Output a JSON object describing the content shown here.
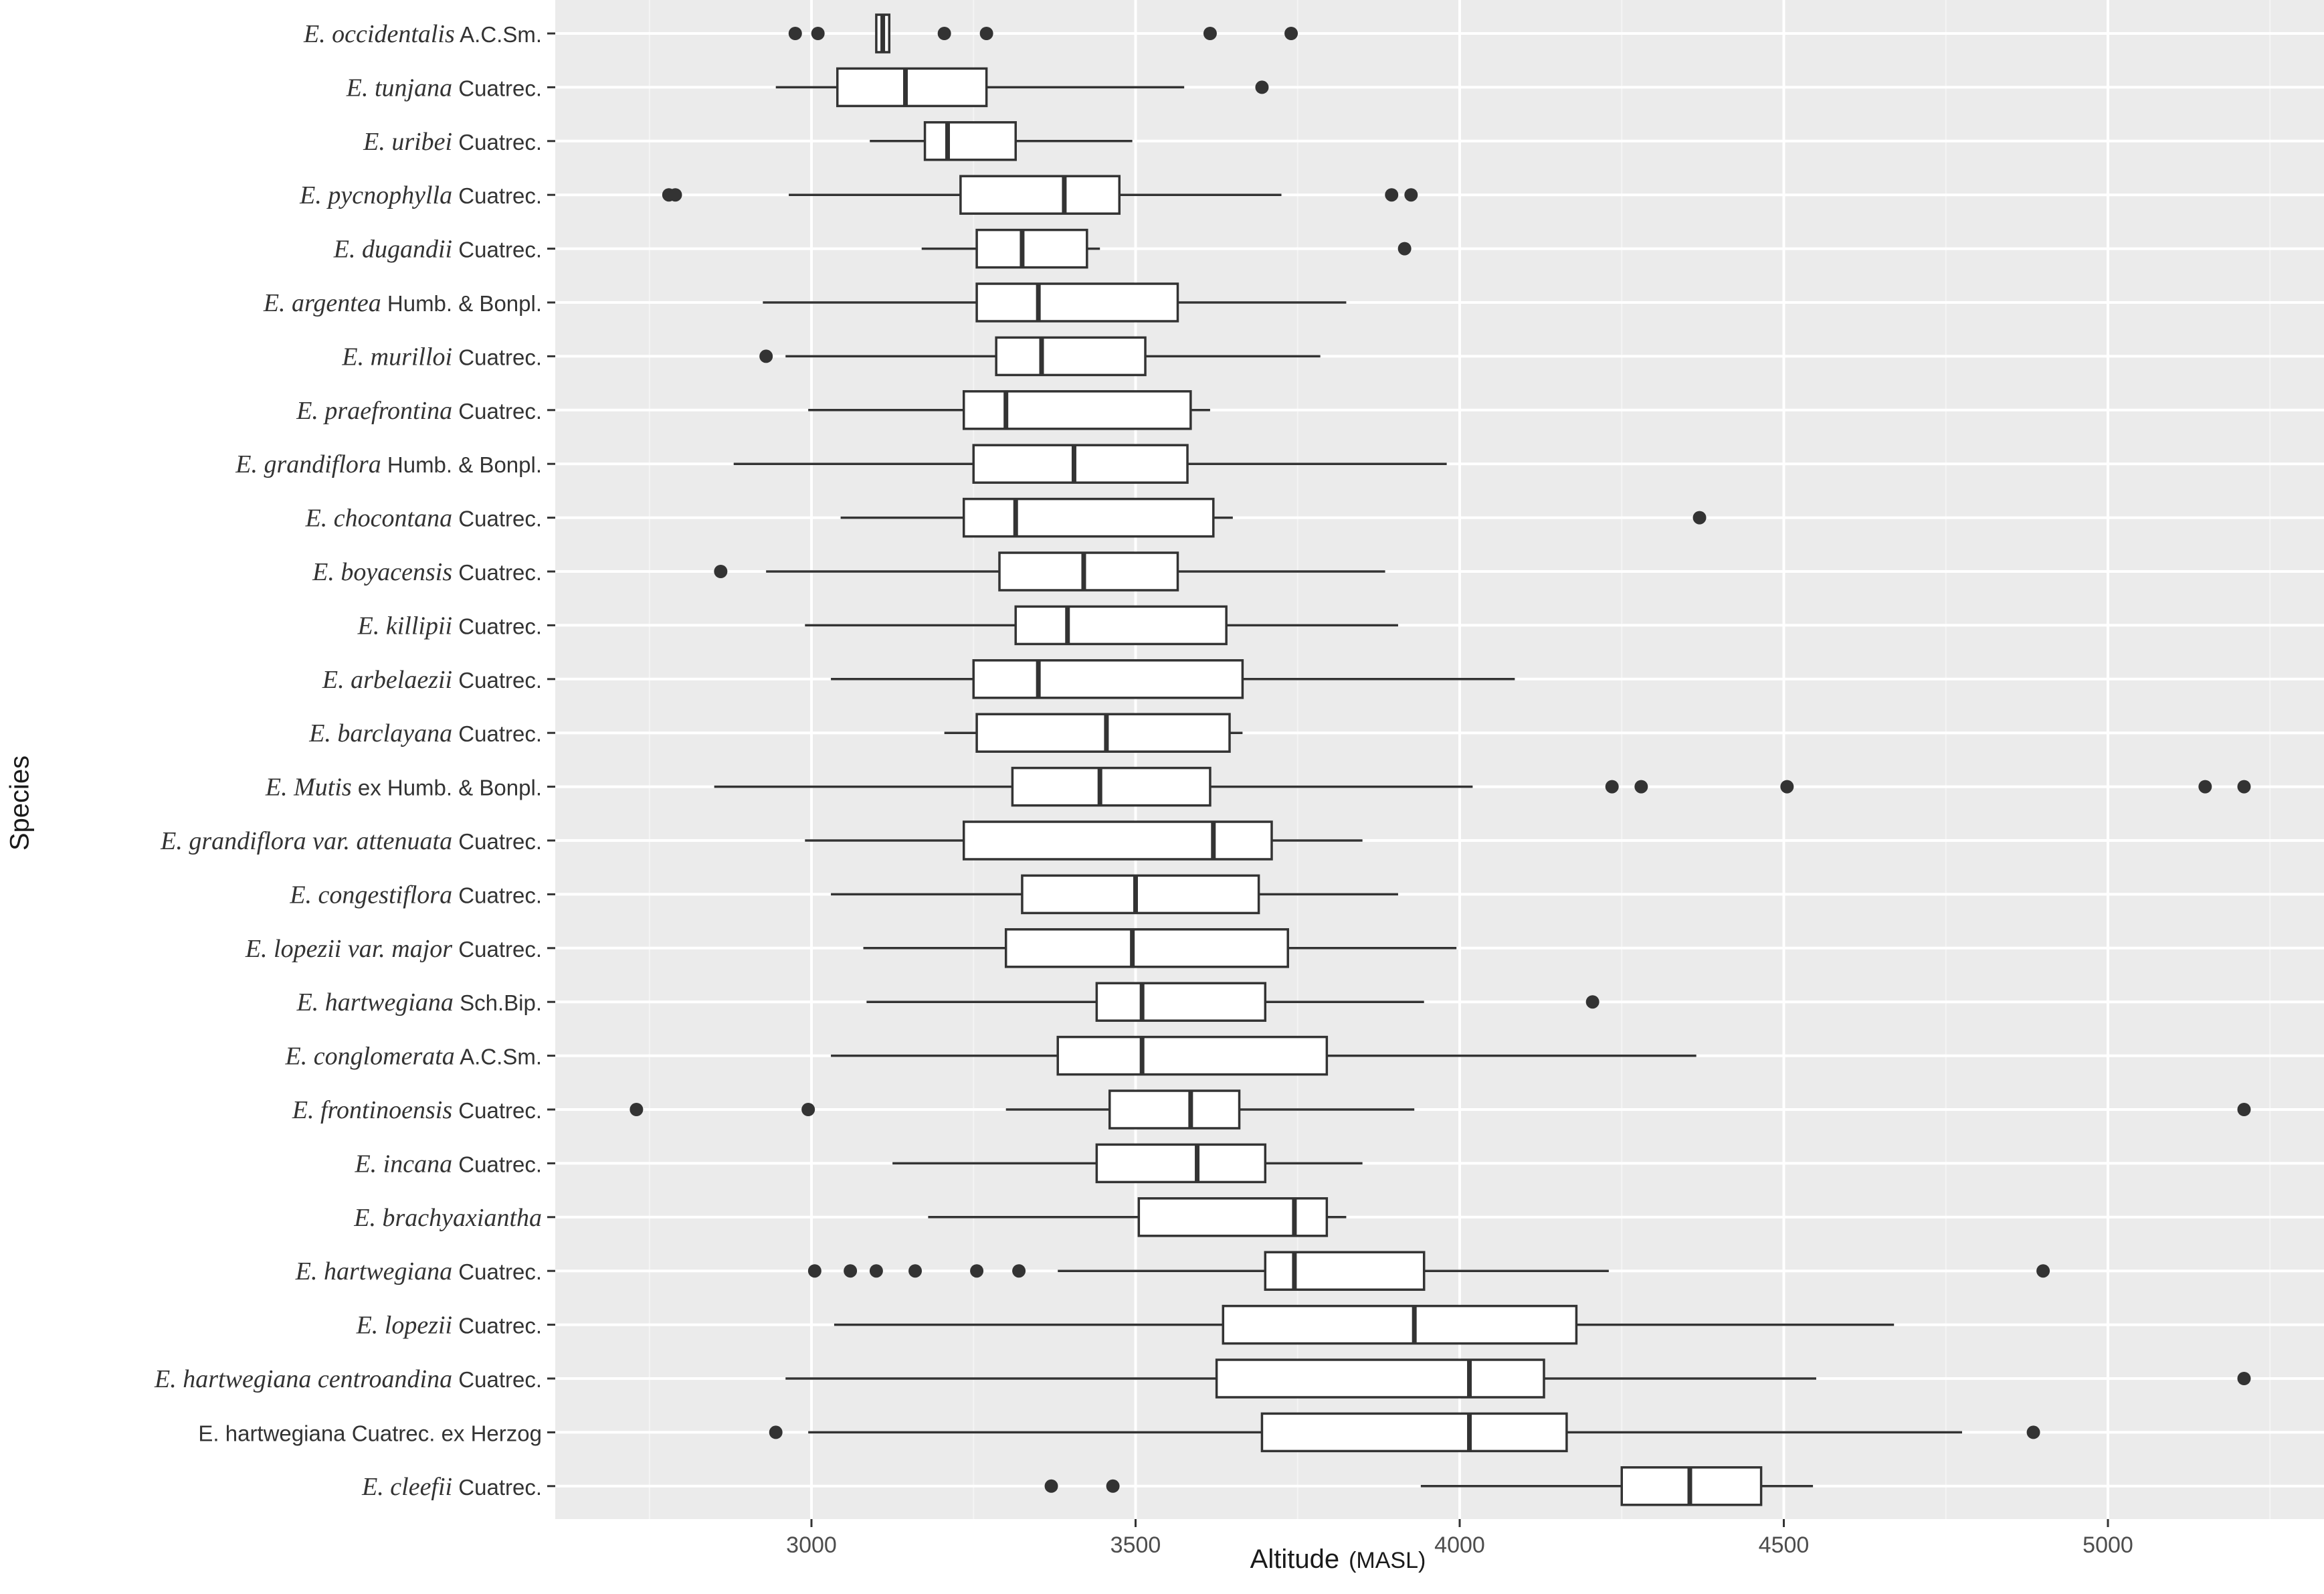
{
  "chart_data": {
    "type": "boxplot",
    "orientation": "horizontal",
    "xlabel": "Altitude",
    "xlabel_unit": "(MASL)",
    "ylabel": "Species",
    "xlim": [
      2600,
      5260
    ],
    "xticks": [
      3000,
      3500,
      4000,
      4500,
      5000
    ],
    "grid": true,
    "species": [
      {
        "italic": "E. occidentalis",
        "author": "A.C.Sm.",
        "whisker_low": 3100,
        "q1": 3100,
        "median": 3110,
        "q3": 3120,
        "whisker_high": 3120,
        "outliers": [
          2975,
          3010,
          3205,
          3270,
          3615,
          3740
        ]
      },
      {
        "italic": "E. tunjana",
        "author": "Cuatrec.",
        "whisker_low": 2945,
        "q1": 3040,
        "median": 3145,
        "q3": 3270,
        "whisker_high": 3575,
        "outliers": [
          3695
        ]
      },
      {
        "italic": "E. uribei",
        "author": "Cuatrec.",
        "whisker_low": 3090,
        "q1": 3175,
        "median": 3210,
        "q3": 3315,
        "whisker_high": 3495,
        "outliers": []
      },
      {
        "italic": "E. pycnophylla",
        "author": "Cuatrec.",
        "whisker_low": 2965,
        "q1": 3230,
        "median": 3390,
        "q3": 3475,
        "whisker_high": 3725,
        "outliers": [
          2780,
          2790,
          3895,
          3925
        ]
      },
      {
        "italic": "E. dugandii",
        "author": "Cuatrec.",
        "whisker_low": 3170,
        "q1": 3255,
        "median": 3325,
        "q3": 3425,
        "whisker_high": 3445,
        "outliers": [
          3915
        ]
      },
      {
        "italic": "E. argentea",
        "author": "Humb. & Bonpl.",
        "whisker_low": 2925,
        "q1": 3255,
        "median": 3350,
        "q3": 3565,
        "whisker_high": 3825,
        "outliers": []
      },
      {
        "italic": "E. murilloi",
        "author": "Cuatrec.",
        "whisker_low": 2960,
        "q1": 3285,
        "median": 3355,
        "q3": 3515,
        "whisker_high": 3785,
        "outliers": [
          2930
        ]
      },
      {
        "italic": "E. praefrontina",
        "author": "Cuatrec.",
        "whisker_low": 2995,
        "q1": 3235,
        "median": 3300,
        "q3": 3585,
        "whisker_high": 3615,
        "outliers": []
      },
      {
        "italic": "E. grandiflora",
        "author": "Humb. & Bonpl.",
        "whisker_low": 2880,
        "q1": 3250,
        "median": 3405,
        "q3": 3580,
        "whisker_high": 3980,
        "outliers": []
      },
      {
        "italic": "E. chocontana",
        "author": "Cuatrec.",
        "whisker_low": 3045,
        "q1": 3235,
        "median": 3315,
        "q3": 3620,
        "whisker_high": 3650,
        "outliers": [
          4370
        ]
      },
      {
        "italic": "E. boyacensis",
        "author": "Cuatrec.",
        "whisker_low": 2930,
        "q1": 3290,
        "median": 3420,
        "q3": 3565,
        "whisker_high": 3885,
        "outliers": [
          2860
        ]
      },
      {
        "italic": "E. killipii",
        "author": "Cuatrec.",
        "whisker_low": 2990,
        "q1": 3315,
        "median": 3395,
        "q3": 3640,
        "whisker_high": 3905,
        "outliers": []
      },
      {
        "italic": "E. arbelaezii",
        "author": "Cuatrec.",
        "whisker_low": 3030,
        "q1": 3250,
        "median": 3350,
        "q3": 3665,
        "whisker_high": 4085,
        "outliers": []
      },
      {
        "italic": "E. barclayana",
        "author": "Cuatrec.",
        "whisker_low": 3205,
        "q1": 3255,
        "median": 3455,
        "q3": 3645,
        "whisker_high": 3665,
        "outliers": []
      },
      {
        "italic": "E. Mutis",
        "author": "ex Humb. & Bonpl.",
        "whisker_low": 2850,
        "q1": 3310,
        "median": 3445,
        "q3": 3615,
        "whisker_high": 4020,
        "outliers": [
          4235,
          4280,
          4505,
          5150,
          5210
        ]
      },
      {
        "italic": "E. grandiflora var. attenuata",
        "author": "Cuatrec.",
        "whisker_low": 2990,
        "q1": 3235,
        "median": 3620,
        "q3": 3710,
        "whisker_high": 3850,
        "outliers": []
      },
      {
        "italic": "E. congestiflora",
        "author": "Cuatrec.",
        "whisker_low": 3030,
        "q1": 3325,
        "median": 3500,
        "q3": 3690,
        "whisker_high": 3905,
        "outliers": []
      },
      {
        "italic": "E. lopezii var. major",
        "author": "Cuatrec.",
        "whisker_low": 3080,
        "q1": 3300,
        "median": 3495,
        "q3": 3735,
        "whisker_high": 3995,
        "outliers": []
      },
      {
        "italic": "E. hartwegiana",
        "author": "Sch.Bip.",
        "whisker_low": 3085,
        "q1": 3440,
        "median": 3510,
        "q3": 3700,
        "whisker_high": 3945,
        "outliers": [
          4205
        ]
      },
      {
        "italic": "E. conglomerata",
        "author": "A.C.Sm.",
        "whisker_low": 3030,
        "q1": 3380,
        "median": 3510,
        "q3": 3795,
        "whisker_high": 4365,
        "outliers": []
      },
      {
        "italic": "E. frontinoensis",
        "author": "Cuatrec.",
        "whisker_low": 3300,
        "q1": 3460,
        "median": 3585,
        "q3": 3660,
        "whisker_high": 3930,
        "outliers": [
          2730,
          2995,
          5210
        ]
      },
      {
        "italic": "E. incana",
        "author": "Cuatrec.",
        "whisker_low": 3125,
        "q1": 3440,
        "median": 3595,
        "q3": 3700,
        "whisker_high": 3850,
        "outliers": []
      },
      {
        "italic": "E. brachyaxiantha",
        "author": "",
        "whisker_low": 3180,
        "q1": 3505,
        "median": 3745,
        "q3": 3795,
        "whisker_high": 3825,
        "outliers": []
      },
      {
        "italic": "E. hartwegiana",
        "author": "Cuatrec.",
        "whisker_low": 3380,
        "q1": 3700,
        "median": 3745,
        "q3": 3945,
        "whisker_high": 4230,
        "outliers": [
          3005,
          3060,
          3100,
          3160,
          3255,
          3320,
          4900
        ]
      },
      {
        "italic": "E. lopezii",
        "author": "Cuatrec.",
        "whisker_low": 3035,
        "q1": 3635,
        "median": 3930,
        "q3": 4180,
        "whisker_high": 4670,
        "outliers": []
      },
      {
        "italic": "E. hartwegiana centroandina",
        "author": "Cuatrec.",
        "whisker_low": 2960,
        "q1": 3625,
        "median": 4015,
        "q3": 4130,
        "whisker_high": 4550,
        "outliers": [
          5210
        ]
      },
      {
        "italic": "",
        "author": "E. hartwegiana Cuatrec. ex Herzog",
        "whisker_low": 2995,
        "q1": 3695,
        "median": 4015,
        "q3": 4165,
        "whisker_high": 4775,
        "outliers": [
          2945,
          4885
        ]
      },
      {
        "italic": "E. cleefii",
        "author": "Cuatrec.",
        "whisker_low": 3940,
        "q1": 4250,
        "median": 4355,
        "q3": 4465,
        "whisker_high": 4545,
        "outliers": [
          3370,
          3465
        ]
      }
    ]
  }
}
